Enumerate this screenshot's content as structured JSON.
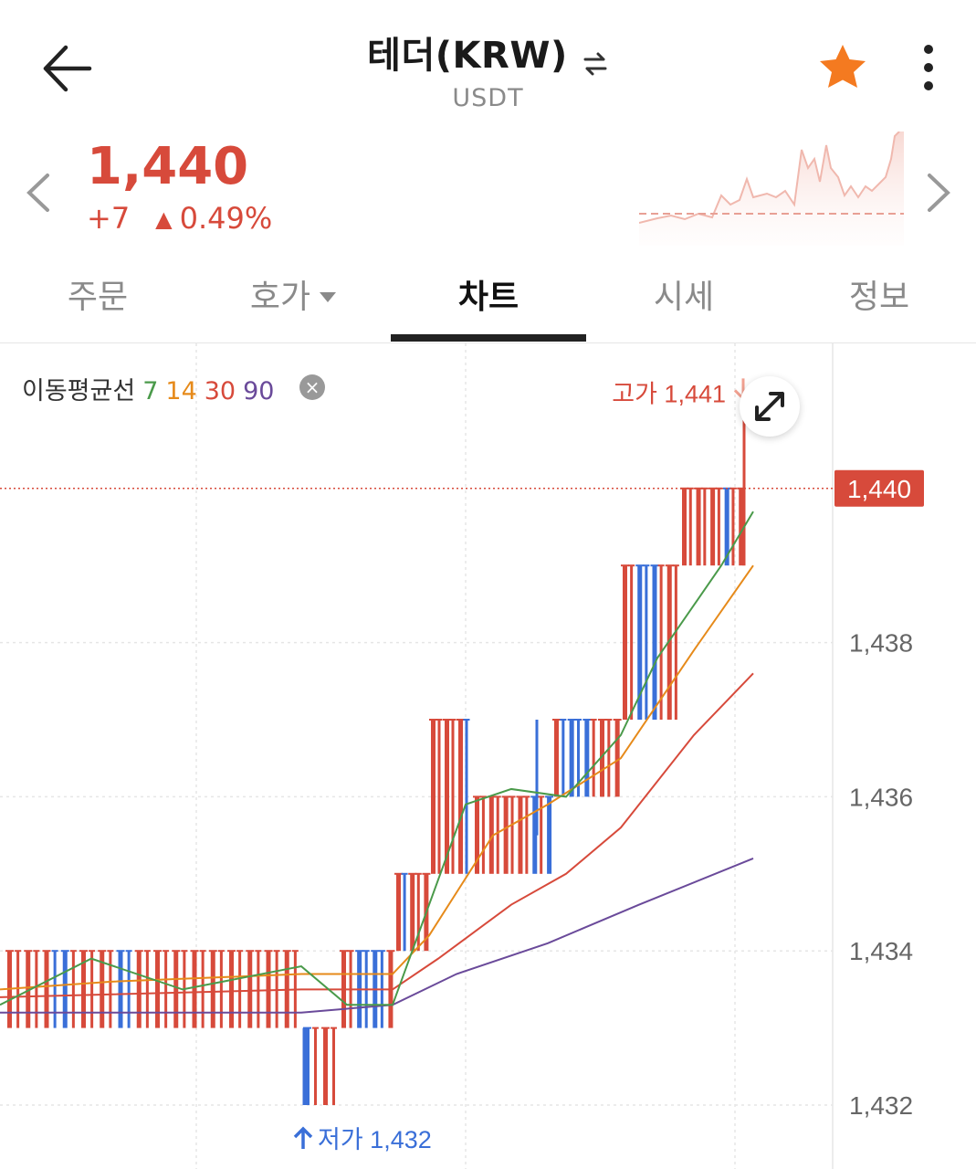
{
  "header": {
    "title": "테더(KRW)",
    "subtitle": "USDT"
  },
  "price": {
    "current": "1,440",
    "change": "+7",
    "change_percent": "0.49%"
  },
  "tabs": [
    {
      "label": "주문"
    },
    {
      "label": "호가"
    },
    {
      "label": "차트"
    },
    {
      "label": "시세"
    },
    {
      "label": "정보"
    }
  ],
  "active_tab": "차트",
  "ma_legend": {
    "label": "이동평균선",
    "periods": [
      "7",
      "14",
      "30",
      "90"
    ],
    "colors": [
      "#4a9a4a",
      "#e68a1a",
      "#d74a3b",
      "#6a4a9a"
    ]
  },
  "colors": {
    "up": "#d74a3b",
    "down": "#3a6fd8",
    "accent_star": "#f47a20"
  },
  "chart_data": {
    "type": "candlestick",
    "y_ticks": [
      "1,438",
      "1,436",
      "1,434",
      "1,432"
    ],
    "ylim": [
      1431.6,
      1441.4
    ],
    "current_price_label": "1,440",
    "current_price": 1440,
    "high_label": "고가 1,441",
    "high": 1441,
    "low_label": "저가 1,432",
    "low": 1432
  }
}
